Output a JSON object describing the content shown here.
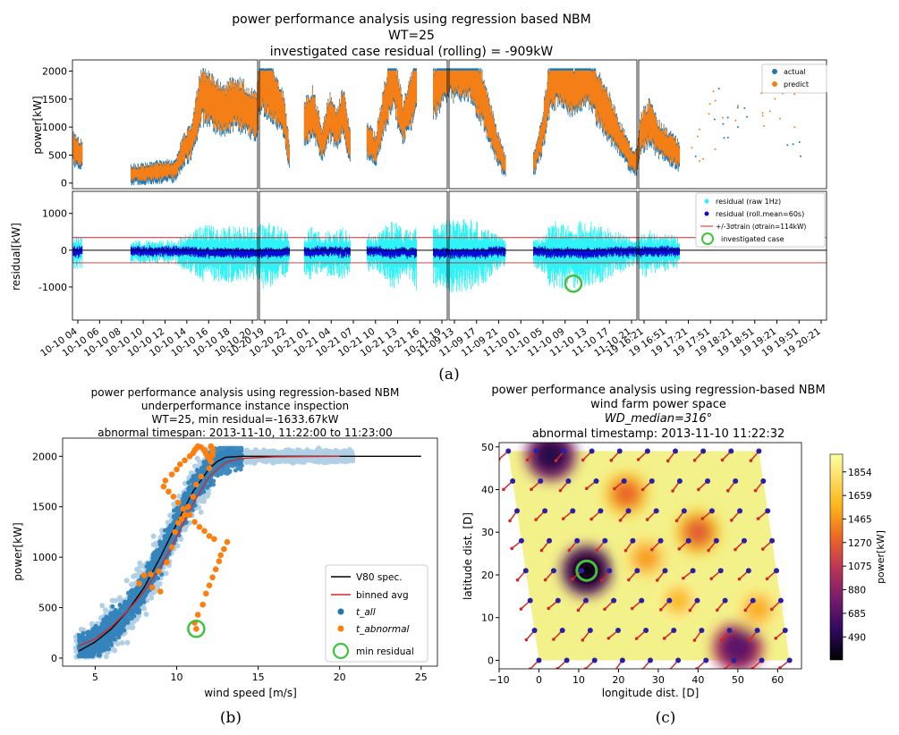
{
  "chart_data": [
    {
      "type": "scatter",
      "id": "a",
      "title_lines": [
        "power performance analysis using regression based NBM",
        "WT=25",
        "investigated case residual (rolling) = -909kW"
      ],
      "panel_label": "(a)",
      "top_ylabel": "power[kW]",
      "top_yticks": [
        "0",
        "500",
        "1000",
        "1500",
        "2000"
      ],
      "top_ylim": [
        -100,
        2200
      ],
      "bottom_ylabel": "residual[kW]",
      "bottom_yticks": [
        "-1000",
        "0",
        "1000"
      ],
      "bottom_ylim": [
        -1900,
        1600
      ],
      "threshold_kW": 342,
      "investigated_residual_kW": -909,
      "legend_top": [
        "actual",
        "predict"
      ],
      "legend_bottom": [
        "residual (raw 1Hz)",
        "residual (roll.mean=60s)",
        "+/-3σtrain (σtrain=114kW)",
        "investigated case"
      ],
      "xtick_groups": [
        [
          "10-10 04",
          "10-10 06",
          "10-10 08",
          "10-10 10",
          "10-10 12",
          "10-10 14",
          "10-10 16",
          "10-10 18",
          "10-10 20"
        ],
        [
          "10-20 19",
          "10-20 22",
          "10-21 01",
          "10-21 04",
          "10-21 07",
          "10-21 10",
          "10-21 13",
          "10-21 16",
          "10-21 19"
        ],
        [
          "11-09 13",
          "11-09 17",
          "11-09 21",
          "11-10 01",
          "11-10 05",
          "11-10 09",
          "11-10 13",
          "11-10 17",
          "11-10 21"
        ],
        [
          "19 16:21",
          "19 16:51",
          "19 17:21",
          "19 17:51",
          "19 18:21",
          "19 18:51",
          "19 19:21",
          "19 19:51",
          "19 20:21"
        ]
      ]
    },
    {
      "type": "scatter",
      "id": "b",
      "title_lines": [
        "power performance analysis using regression-based NBM",
        "underperformance instance inspection",
        "WT=25, min residual=-1633.67kW",
        "abnormal timespan: 2013-11-10, 11:22:00 to 11:23:00"
      ],
      "panel_label": "(b)",
      "xlabel": "wind speed [m/s]",
      "ylabel": "power[kW]",
      "xlim": [
        3,
        26
      ],
      "ylim": [
        -80,
        2180
      ],
      "xticks": [
        "5",
        "10",
        "15",
        "20",
        "25"
      ],
      "yticks": [
        "0",
        "500",
        "1000",
        "1500",
        "2000"
      ],
      "legend": [
        "V80 spec.",
        "binned avg",
        "t_all",
        "t_abnormal",
        "min residual"
      ],
      "spec_curve": {
        "x": [
          4,
          5,
          6,
          7,
          8,
          9,
          10,
          11,
          12,
          12.5,
          13,
          14,
          15,
          25
        ],
        "y": [
          70,
          160,
          290,
          470,
          700,
          1000,
          1330,
          1650,
          1880,
          1950,
          1990,
          2000,
          2000,
          2000
        ]
      },
      "binned_avg": {
        "x": [
          4,
          5,
          6,
          7,
          8,
          9,
          10,
          11,
          12,
          13,
          14,
          16,
          20
        ],
        "y": [
          120,
          190,
          310,
          470,
          660,
          900,
          1200,
          1530,
          1800,
          1940,
          1980,
          1995,
          2000
        ]
      },
      "abnormal_points": {
        "x": [
          11.2,
          11.1,
          11.3,
          11.6,
          11.8,
          12.0,
          12.2,
          12.4,
          12.6,
          12.7,
          12.9,
          13.1,
          12.3,
          12.0,
          11.7,
          11.4,
          11.1,
          10.8,
          10.4,
          10.1,
          9.8,
          9.5,
          9.2,
          9.3,
          9.7,
          10.0,
          10.2,
          10.5,
          10.8,
          11.0,
          11.1,
          11.2,
          11.3,
          11.5,
          11.7,
          11.8,
          11.9,
          12.0,
          12.1,
          12.2,
          12.2,
          12.2,
          12.1,
          12.0,
          11.5,
          11.2,
          11.0,
          10.7,
          10.5,
          10.3,
          10.1,
          9.9,
          9.7,
          9.4,
          8.9,
          8.4,
          8.0,
          7.7,
          8.5,
          9.0
        ],
        "y": [
          290,
          350,
          430,
          530,
          640,
          720,
          800,
          880,
          960,
          1020,
          1080,
          1150,
          1180,
          1210,
          1260,
          1300,
          1350,
          1420,
          1480,
          1540,
          1600,
          1650,
          1700,
          1760,
          1820,
          1870,
          1920,
          1960,
          2000,
          2030,
          2060,
          2080,
          2100,
          2090,
          2060,
          2030,
          2000,
          1980,
          2100,
          2080,
          2050,
          2010,
          1950,
          1880,
          1800,
          1720,
          1600,
          1500,
          1420,
          1380,
          1340,
          1250,
          1100,
          950,
          860,
          830,
          820,
          740,
          700,
          660
        ]
      },
      "min_residual_point": {
        "x": 11.2,
        "y": 290
      }
    },
    {
      "type": "heatmap",
      "id": "c",
      "title_lines": [
        "power performance analysis using regression-based NBM",
        "wind farm power space",
        "WD_median=316°",
        "abnormal timestamp: 2013-11-10 11:22:32"
      ],
      "panel_label": "(c)",
      "xlabel": "longitude dist. [D]",
      "ylabel": "latitude dist. [D]",
      "xlim": [
        -10,
        66
      ],
      "ylim": [
        -2,
        51
      ],
      "xticks": [
        "−10",
        "0",
        "10",
        "20",
        "30",
        "40",
        "50",
        "60"
      ],
      "yticks": [
        "0",
        "10",
        "20",
        "30",
        "40",
        "50"
      ],
      "colorbar_label": "power[kW]",
      "colorbar_ticks": [
        "1854",
        "1659",
        "1465",
        "1270",
        "1075",
        "880",
        "685",
        "490"
      ],
      "colorbar_range": [
        300,
        2000
      ],
      "wind_direction_deg": 316,
      "turbine_rows_y": [
        0,
        7,
        14,
        21,
        28,
        35,
        42,
        49
      ],
      "turbine_row_x0": [
        0,
        -1.1,
        -2.2,
        -3.3,
        -4.4,
        -5.5,
        -6.6,
        -7.7
      ],
      "turbine_spacing_x": 7,
      "low_power_spots": [
        {
          "x": 3,
          "y": 48,
          "power": 500
        },
        {
          "x": 12,
          "y": 21,
          "power": 350
        },
        {
          "x": 22,
          "y": 39,
          "power": 1300
        },
        {
          "x": 40,
          "y": 30,
          "power": 1250
        },
        {
          "x": 50,
          "y": 3,
          "power": 700
        },
        {
          "x": 27,
          "y": 24,
          "power": 1500
        },
        {
          "x": 35,
          "y": 14,
          "power": 1600
        },
        {
          "x": 55,
          "y": 12,
          "power": 1550
        }
      ],
      "investigated_turbine": {
        "x": 12,
        "y": 21
      }
    }
  ]
}
